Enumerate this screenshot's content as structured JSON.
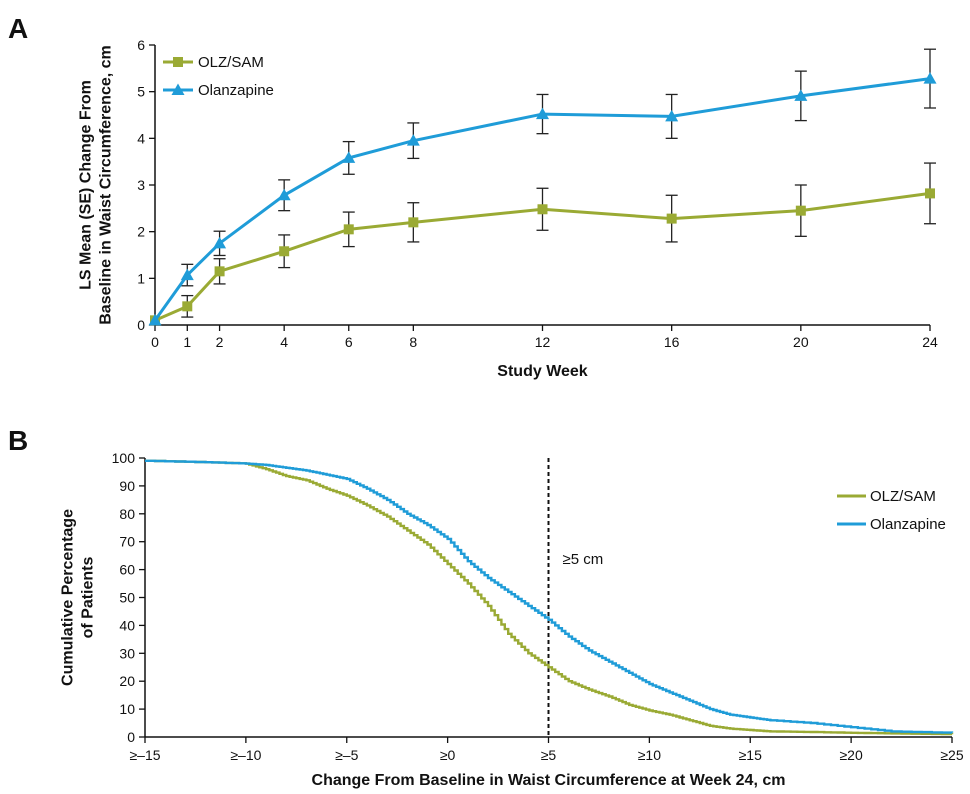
{
  "chart_data": [
    {
      "panel": "A",
      "type": "line",
      "title": "",
      "xlabel": "Study Week",
      "ylabel_lines": [
        "LS Mean (SE) Change From",
        "Baseline in Waist Circumference, cm"
      ],
      "x": [
        0,
        1,
        2,
        4,
        6,
        8,
        12,
        16,
        20,
        24
      ],
      "xticks": [
        "0",
        "1",
        "2",
        "4",
        "6",
        "8",
        "12",
        "16",
        "20",
        "24"
      ],
      "yticks": [
        "0",
        "1",
        "2",
        "3",
        "4",
        "5",
        "6"
      ],
      "xlim": [
        0,
        24
      ],
      "ylim": [
        0,
        6
      ],
      "legend_position": "top-left",
      "series": [
        {
          "name": "OLZ/SAM",
          "color": "#9aaa34",
          "marker": "square",
          "values": [
            0.1,
            0.4,
            1.15,
            1.58,
            2.05,
            2.2,
            2.48,
            2.28,
            2.45,
            2.82
          ],
          "se": [
            0.0,
            0.23,
            0.27,
            0.35,
            0.37,
            0.42,
            0.45,
            0.5,
            0.55,
            0.65
          ]
        },
        {
          "name": "Olanzapine",
          "color": "#1f9cd8",
          "marker": "triangle",
          "values": [
            0.1,
            1.07,
            1.75,
            2.78,
            3.58,
            3.95,
            4.52,
            4.47,
            4.91,
            5.28
          ],
          "se": [
            0.0,
            0.23,
            0.26,
            0.33,
            0.35,
            0.38,
            0.42,
            0.47,
            0.53,
            0.63
          ]
        }
      ]
    },
    {
      "panel": "B",
      "type": "line",
      "title": "",
      "xlabel": "Change From Baseline in Waist Circumference at Week 24, cm",
      "ylabel_lines": [
        "Cumulative Percentage",
        "of Patients"
      ],
      "xticks": [
        "≥–15",
        "≥–10",
        "≥–5",
        "≥0",
        "≥5",
        "≥10",
        "≥15",
        "≥20",
        "≥25"
      ],
      "xtick_values": [
        -15,
        -10,
        -5,
        0,
        5,
        10,
        15,
        20,
        25
      ],
      "yticks": [
        "0",
        "10",
        "20",
        "30",
        "40",
        "50",
        "60",
        "70",
        "80",
        "90",
        "100"
      ],
      "xlim": [
        -15,
        25
      ],
      "ylim": [
        0,
        100
      ],
      "legend_position": "top-right",
      "reference_line": {
        "x": 5,
        "label": "≥5 cm",
        "style": "dotted"
      },
      "series": [
        {
          "name": "OLZ/SAM",
          "color": "#9aaa34",
          "x": [
            -15,
            -12,
            -10,
            -9,
            -8,
            -7,
            -6,
            -5,
            -4,
            -3,
            -2,
            -1,
            0,
            1,
            2,
            3,
            4,
            5,
            6,
            7,
            8,
            9,
            10,
            11,
            12,
            13,
            14,
            15,
            16,
            18,
            20,
            22,
            25
          ],
          "values": [
            99,
            98.5,
            98,
            96,
            93.5,
            92,
            89,
            86.5,
            83,
            79,
            74,
            69,
            62,
            55,
            47,
            37,
            30,
            25,
            20,
            17,
            14.5,
            11.5,
            9.5,
            8,
            6,
            4,
            3,
            2.5,
            2,
            1.8,
            1.5,
            1.3,
            1
          ]
        },
        {
          "name": "Olanzapine",
          "color": "#1f9cd8",
          "x": [
            -15,
            -12,
            -10,
            -9,
            -8,
            -7,
            -6,
            -5,
            -4,
            -3,
            -2,
            -1,
            0,
            1,
            2,
            3,
            4,
            5,
            6,
            7,
            8,
            9,
            10,
            11,
            12,
            13,
            14,
            15,
            16,
            18,
            20,
            22,
            25
          ],
          "values": [
            99,
            98.5,
            98,
            97.5,
            96.5,
            95.5,
            94,
            92.5,
            89,
            85,
            80,
            76,
            71,
            63,
            57,
            52,
            47,
            42,
            36,
            31,
            27,
            23,
            19,
            16,
            13,
            10,
            8,
            7,
            6,
            5,
            3.5,
            2,
            1.5
          ]
        }
      ]
    }
  ]
}
